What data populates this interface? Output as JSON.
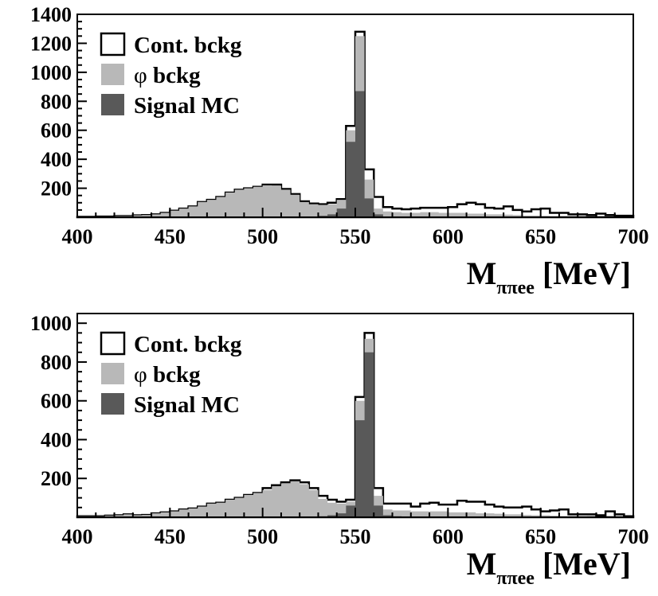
{
  "colors": {
    "background": "#ffffff",
    "axes": "#000000",
    "cont_bckg": "#ffffff",
    "phi_bckg": "#b8b8b8",
    "signal_mc": "#595959"
  },
  "chart_data": [
    {
      "type": "histogram",
      "x_label_main": "M",
      "x_label_sub": "ππee",
      "x_label_unit": " [MeV]",
      "xlim": [
        400,
        700
      ],
      "ylim": [
        0,
        1400
      ],
      "x_ticks": [
        "400",
        "450",
        "500",
        "550",
        "600",
        "650",
        "700"
      ],
      "y_ticks": [
        "200",
        "400",
        "600",
        "800",
        "1000",
        "1200",
        "1400"
      ],
      "bin_start": 400,
      "bin_width": 5,
      "legend": {
        "position": "top-left",
        "entries": [
          {
            "label_pre": "Cont. bckg",
            "label_post": "",
            "swatch": "cont_bckg"
          },
          {
            "label_pre": "φ",
            "label_post": " bckg",
            "swatch": "phi_bckg"
          },
          {
            "label_pre": "Signal MC",
            "label_post": "",
            "swatch": "signal_mc"
          }
        ]
      },
      "series": [
        {
          "name": "Cont. bckg",
          "color_key": "cont_bckg",
          "values": [
            3,
            3,
            5,
            5,
            8,
            8,
            13,
            15,
            20,
            30,
            45,
            60,
            75,
            105,
            120,
            140,
            170,
            190,
            200,
            210,
            225,
            225,
            195,
            160,
            110,
            95,
            90,
            100,
            125,
            630,
            1280,
            330,
            140,
            70,
            60,
            55,
            60,
            65,
            65,
            65,
            70,
            90,
            100,
            90,
            65,
            60,
            75,
            50,
            40,
            55,
            60,
            30,
            30,
            20,
            20,
            15,
            25,
            15,
            10,
            10
          ]
        },
        {
          "name": "φ bckg",
          "color_key": "phi_bckg",
          "values": [
            3,
            3,
            5,
            5,
            8,
            8,
            13,
            15,
            20,
            30,
            45,
            60,
            75,
            105,
            120,
            140,
            170,
            190,
            200,
            210,
            220,
            218,
            190,
            155,
            105,
            90,
            85,
            90,
            120,
            600,
            1250,
            260,
            60,
            40,
            35,
            30,
            30,
            35,
            35,
            30,
            30,
            30,
            25,
            25,
            20,
            20,
            18,
            15,
            12,
            12,
            10,
            8,
            6,
            5,
            5,
            4,
            3,
            3,
            2,
            2
          ]
        },
        {
          "name": "Signal MC",
          "color_key": "signal_mc",
          "values": [
            0,
            0,
            0,
            0,
            0,
            0,
            0,
            0,
            0,
            0,
            0,
            0,
            0,
            0,
            0,
            0,
            0,
            0,
            0,
            0,
            0,
            0,
            0,
            0,
            0,
            5,
            10,
            20,
            60,
            520,
            870,
            130,
            20,
            5,
            0,
            0,
            0,
            0,
            0,
            0,
            0,
            0,
            0,
            0,
            0,
            0,
            0,
            0,
            0,
            0,
            0,
            0,
            0,
            0,
            0,
            0,
            0,
            0,
            0,
            0
          ]
        }
      ]
    },
    {
      "type": "histogram",
      "x_label_main": "M",
      "x_label_sub": "ππee",
      "x_label_unit": " [MeV]",
      "xlim": [
        400,
        700
      ],
      "ylim": [
        0,
        1050
      ],
      "x_ticks": [
        "400",
        "450",
        "500",
        "550",
        "600",
        "650",
        "700"
      ],
      "y_ticks": [
        "200",
        "400",
        "600",
        "800",
        "1000"
      ],
      "bin_start": 400,
      "bin_width": 5,
      "legend": {
        "position": "top-left",
        "entries": [
          {
            "label_pre": "Cont. bckg",
            "label_post": "",
            "swatch": "cont_bckg"
          },
          {
            "label_pre": "φ",
            "label_post": " bckg",
            "swatch": "phi_bckg"
          },
          {
            "label_pre": "Signal MC",
            "label_post": "",
            "swatch": "signal_mc"
          }
        ]
      },
      "series": [
        {
          "name": "Cont. bckg",
          "color_key": "cont_bckg",
          "values": [
            5,
            5,
            5,
            8,
            10,
            15,
            10,
            12,
            20,
            25,
            30,
            40,
            45,
            55,
            70,
            75,
            90,
            100,
            115,
            125,
            150,
            165,
            180,
            190,
            180,
            150,
            110,
            90,
            80,
            90,
            620,
            950,
            150,
            70,
            70,
            70,
            55,
            70,
            75,
            65,
            65,
            85,
            80,
            80,
            65,
            55,
            50,
            50,
            55,
            40,
            30,
            35,
            40,
            15,
            15,
            15,
            10,
            30,
            15,
            5
          ]
        },
        {
          "name": "φ bckg",
          "color_key": "phi_bckg",
          "values": [
            5,
            5,
            5,
            8,
            10,
            15,
            10,
            12,
            20,
            25,
            30,
            40,
            45,
            55,
            70,
            75,
            90,
            100,
            115,
            125,
            140,
            160,
            175,
            185,
            170,
            140,
            95,
            75,
            70,
            80,
            600,
            920,
            110,
            40,
            35,
            35,
            30,
            30,
            30,
            30,
            25,
            25,
            25,
            20,
            20,
            18,
            15,
            15,
            12,
            10,
            10,
            8,
            6,
            5,
            5,
            4,
            3,
            3,
            2,
            2
          ]
        },
        {
          "name": "Signal MC",
          "color_key": "signal_mc",
          "values": [
            0,
            0,
            0,
            0,
            0,
            0,
            0,
            0,
            0,
            0,
            0,
            0,
            0,
            0,
            0,
            0,
            0,
            0,
            0,
            0,
            0,
            0,
            0,
            0,
            0,
            0,
            5,
            10,
            20,
            60,
            500,
            850,
            60,
            10,
            5,
            0,
            0,
            0,
            0,
            0,
            0,
            0,
            0,
            0,
            0,
            0,
            0,
            0,
            0,
            0,
            0,
            0,
            0,
            0,
            0,
            0,
            0,
            0,
            0,
            0
          ]
        }
      ]
    }
  ]
}
